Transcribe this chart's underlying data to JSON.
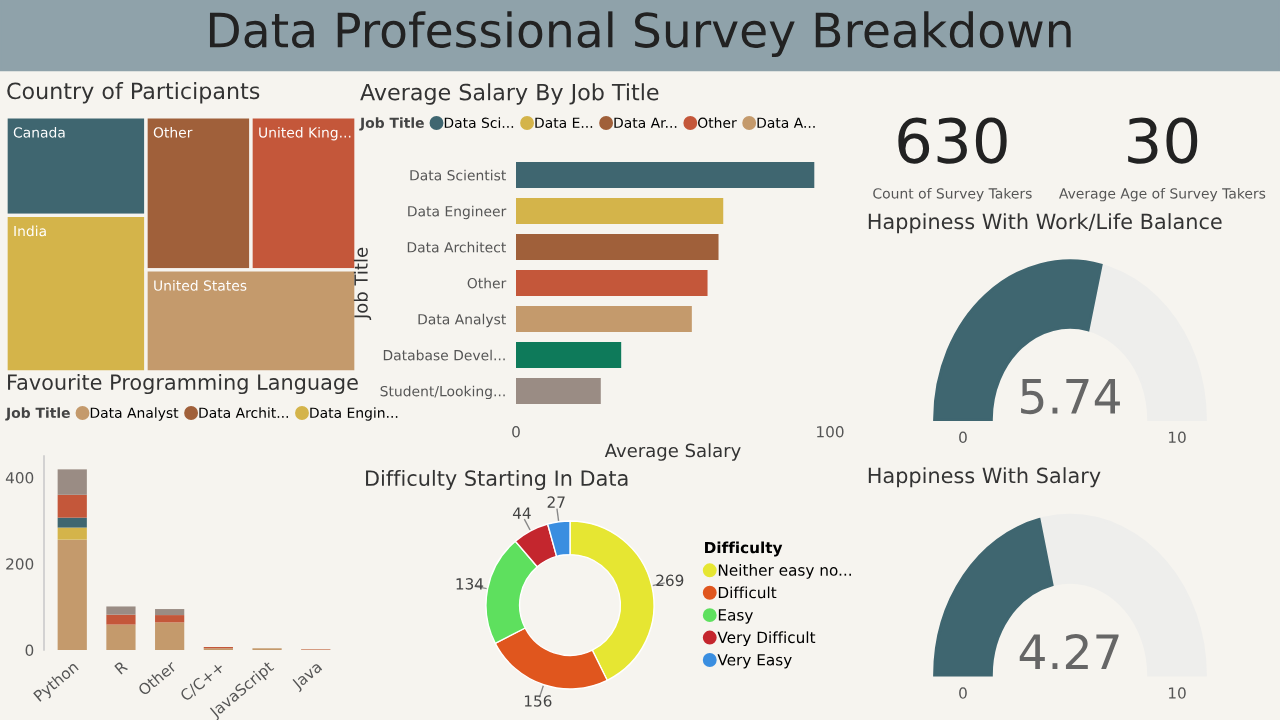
{
  "chart_data": [
    {
      "type": "other",
      "title": "Data Professional Survey Breakdown"
    },
    {
      "type": "other",
      "title": "Country of Participants",
      "categories": [
        "Canada",
        "India",
        "Other",
        "United King...",
        "United States"
      ],
      "colors": [
        "#3f6670",
        "#d4b44a",
        "#a0603a",
        "#c4573a",
        "#c49a6c"
      ]
    },
    {
      "type": "bar",
      "orientation": "horizontal",
      "title": "Average Salary By Job Title",
      "xlabel": "Average Salary",
      "ylabel": "Job Title",
      "legend_title": "Job Title",
      "legend": "top",
      "categories": [
        "Data Scientist",
        "Data Engineer",
        "Data Architect",
        "Other",
        "Data Analyst",
        "Database Devel...",
        "Student/Looking..."
      ],
      "series": [
        {
          "name": "Data Sci...",
          "color": "#3f6670",
          "values": [
            95,
            null,
            null,
            null,
            null,
            null,
            null
          ]
        },
        {
          "name": "Data E...",
          "color": "#d4b44a",
          "values": [
            null,
            66,
            null,
            null,
            null,
            null,
            null
          ]
        },
        {
          "name": "Data Ar...",
          "color": "#a0603a",
          "values": [
            null,
            null,
            64.5,
            null,
            null,
            null,
            null
          ]
        },
        {
          "name": "Other",
          "color": "#c4573a",
          "values": [
            null,
            null,
            null,
            61,
            null,
            null,
            null
          ]
        },
        {
          "name": "Data A...",
          "color": "#c49a6c",
          "values": [
            null,
            null,
            null,
            null,
            56,
            null,
            null
          ]
        },
        {
          "color": "#0e7a5a",
          "values": [
            null,
            null,
            null,
            null,
            null,
            33.5,
            null
          ]
        },
        {
          "color": "#9a8c84",
          "values": [
            null,
            null,
            null,
            null,
            null,
            null,
            27
          ]
        }
      ],
      "xlim": [
        0,
        100
      ],
      "xticks": [
        0,
        100
      ],
      "grid": false
    },
    {
      "type": "other",
      "annotations": [
        "630",
        "Count of Survey Takers",
        "30",
        "Average Age of Survey Takers"
      ]
    },
    {
      "type": "other",
      "title": "Happiness With Work/Life Balance",
      "annotations": [
        "5.74",
        "0",
        "10"
      ],
      "colors": [
        "#3f6670",
        "#eeeeec"
      ]
    },
    {
      "type": "bar",
      "stacked": true,
      "title": "Favourite Programming Language",
      "legend_title": "Job Title",
      "legend": "top",
      "categories": [
        "Python",
        "R",
        "Other",
        "C/C++",
        "JavaScript",
        "Java"
      ],
      "series": [
        {
          "name": "Data Analyst",
          "color": "#c49a6c",
          "values": [
            256,
            59,
            64,
            4,
            4,
            1
          ]
        },
        {
          "name": "Data Archit...",
          "color": "#a0603a",
          "values": [
            null,
            null,
            null,
            null,
            null,
            null
          ]
        },
        {
          "name": "Data Engin...",
          "color": "#d4b44a",
          "values": [
            28,
            null,
            null,
            null,
            null,
            null
          ]
        },
        {
          "color": "#3f6670",
          "values": [
            23,
            null,
            null,
            null,
            null,
            null
          ]
        },
        {
          "color": "#c4573a",
          "values": [
            53,
            23,
            17,
            3,
            null,
            1
          ]
        },
        {
          "color": "#9a8c84",
          "values": [
            59,
            19,
            14,
            null,
            null,
            null
          ]
        }
      ],
      "ylim": [
        0,
        450
      ],
      "yticks": [
        0,
        200,
        400
      ],
      "grid": false
    },
    {
      "type": "donut",
      "title": "Difficulty Starting In Data",
      "legend_title": "Difficulty",
      "legend": "right",
      "data_labels": true,
      "categories": [
        "Neither easy no...",
        "Difficult",
        "Easy",
        "Very Difficult",
        "Very Easy"
      ],
      "values": [
        269,
        156,
        134,
        44,
        27
      ],
      "colors": [
        "#e6e632",
        "#e0561e",
        "#5ee05e",
        "#c4262e",
        "#3a8ee0"
      ]
    },
    {
      "type": "other",
      "title": "Happiness With Salary",
      "annotations": [
        "4.27",
        "0",
        "10"
      ],
      "colors": [
        "#3f6670",
        "#eeeeec"
      ]
    }
  ]
}
